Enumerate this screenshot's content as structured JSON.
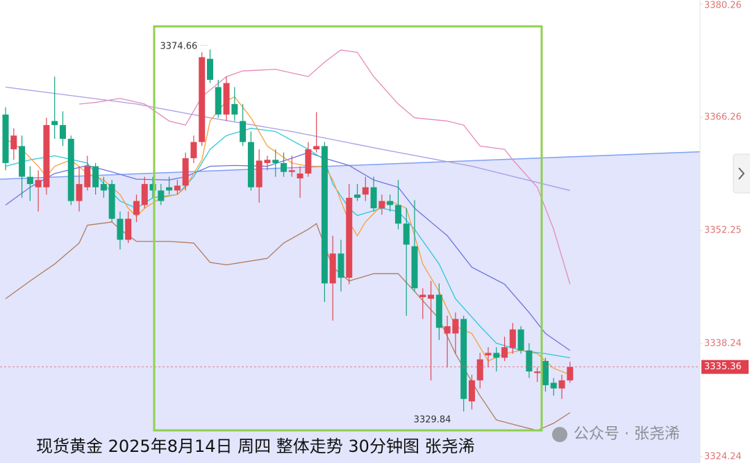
{
  "chart_data": {
    "type": "candlestick",
    "title": "现货黄金 2025年8月14日 周四 整体走势 30分钟图 张尧浠",
    "watermark": "公众号 · 张尧浠",
    "up_color": "#e04654",
    "down_color": "#14a37f",
    "categories": [
      null,
      null,
      null,
      null,
      null,
      null,
      null,
      null,
      null,
      null,
      null,
      null,
      null,
      null,
      null,
      null,
      null,
      null,
      null,
      null,
      null,
      null,
      null,
      null,
      null,
      null,
      null,
      null,
      null,
      null,
      null,
      null,
      null,
      null,
      null,
      null,
      null,
      null,
      null,
      null,
      null,
      null,
      null,
      null,
      null,
      null,
      null,
      null,
      null,
      null,
      null,
      null,
      null,
      null,
      null,
      null,
      null,
      null,
      null,
      null,
      null,
      null,
      null,
      null,
      null,
      null,
      null,
      null,
      null,
      null
    ],
    "open": [
      3366.6,
      3362.3,
      3362.7,
      3358.9,
      3357.6,
      3357.6,
      3365.8,
      3365.3,
      3363.6,
      3355.9,
      3357.6,
      3360.2,
      3358.0,
      3358.0,
      3353.7,
      3351.1,
      3354.2,
      3355.4,
      3358.0,
      3357.2,
      3357.6,
      3357.2,
      3357.8,
      3361.2,
      3363.2,
      3373.5,
      3370.0,
      3366.6,
      3367.9,
      3365.8,
      3363.2,
      3357.6,
      3360.6,
      3361.0,
      3360.6,
      3359.5,
      3358.7,
      3359.3,
      3362.3,
      3362.7,
      3345.7,
      3349.4,
      3346.4,
      3356.7,
      3356.7,
      3357.6,
      3355.0,
      3355.9,
      3355.4,
      3353.1,
      3350.3,
      3344.0,
      3343.8,
      3344.3,
      3339.5,
      3339.5,
      3341.3,
      3331.1,
      3333.7,
      3336.8,
      3337.1,
      3336.5,
      3337.7,
      3340.0,
      3337.4,
      3334.6,
      3336.1,
      3333.4,
      3332.7,
      3333.7
    ],
    "high": [
      3367.5,
      3364.9,
      3364.0,
      3360.2,
      3359.7,
      3366.2,
      3371.3,
      3367.0,
      3364.0,
      3360.2,
      3361.5,
      3360.6,
      3358.9,
      3358.5,
      3354.6,
      3354.6,
      3356.7,
      3358.9,
      3358.9,
      3358.0,
      3358.9,
      3358.5,
      3361.9,
      3364.0,
      3374.3,
      3374.66,
      3370.9,
      3371.3,
      3370.0,
      3367.9,
      3364.5,
      3362.3,
      3361.5,
      3362.3,
      3361.9,
      3361.5,
      3360.2,
      3363.2,
      3366.9,
      3363.2,
      3351.6,
      3351.1,
      3358.0,
      3358.0,
      3358.9,
      3358.9,
      3356.7,
      3356.7,
      3358.5,
      3355.0,
      3356.0,
      3345.1,
      3346.0,
      3345.7,
      3341.7,
      3342.1,
      3341.7,
      3334.4,
      3337.1,
      3337.8,
      3337.8,
      3339.1,
      3340.8,
      3340.4,
      3338.3,
      3335.3,
      3336.5,
      3334.0,
      3334.4,
      3336.0
    ],
    "low": [
      3359.7,
      3361.0,
      3356.3,
      3355.9,
      3354.6,
      3356.7,
      3363.6,
      3362.7,
      3355.4,
      3354.6,
      3357.2,
      3356.7,
      3356.3,
      3353.3,
      3349.9,
      3350.7,
      3353.3,
      3355.0,
      3356.3,
      3355.4,
      3356.7,
      3356.7,
      3357.2,
      3360.6,
      3362.7,
      3370.5,
      3366.2,
      3365.8,
      3365.8,
      3362.7,
      3357.2,
      3355.7,
      3359.7,
      3358.9,
      3358.9,
      3358.9,
      3356.3,
      3358.9,
      3361.9,
      3343.4,
      3341.1,
      3344.7,
      3345.6,
      3355.9,
      3355.9,
      3354.6,
      3354.2,
      3354.6,
      3352.4,
      3341.7,
      3344.7,
      3341.3,
      3333.7,
      3338.7,
      3335.3,
      3337.0,
      3329.84,
      3330.1,
      3332.7,
      3335.3,
      3334.8,
      3336.1,
      3337.0,
      3337.0,
      3334.0,
      3333.5,
      3332.3,
      3331.8,
      3331.4,
      3333.4
    ],
    "close": [
      3360.6,
      3364.0,
      3358.9,
      3358.0,
      3358.5,
      3365.3,
      3365.3,
      3363.6,
      3355.9,
      3358.0,
      3360.2,
      3357.6,
      3357.2,
      3353.7,
      3351.1,
      3353.7,
      3355.9,
      3358.0,
      3357.2,
      3355.9,
      3357.2,
      3357.8,
      3361.2,
      3363.2,
      3373.7,
      3370.9,
      3366.6,
      3370.5,
      3366.6,
      3363.2,
      3357.6,
      3360.9,
      3361.0,
      3360.6,
      3359.5,
      3359.7,
      3359.3,
      3362.3,
      3362.7,
      3345.7,
      3349.4,
      3346.4,
      3356.3,
      3356.3,
      3357.6,
      3355.0,
      3355.9,
      3355.4,
      3353.1,
      3350.5,
      3345.1,
      3344.3,
      3344.3,
      3340.2,
      3340.4,
      3341.3,
      3331.4,
      3333.7,
      3336.3,
      3337.1,
      3336.5,
      3337.8,
      3340.0,
      3337.4,
      3334.8,
      3334.8,
      3333.1,
      3332.7,
      3333.7,
      3335.36
    ],
    "lines": [
      {
        "color": "#a99be6",
        "x": [
          0,
          16,
          25,
          35,
          46,
          57,
          69
        ],
        "values": [
          3370.0,
          3367.9,
          3366.2,
          3364.5,
          3362.3,
          3360.2,
          3357.2
        ]
      },
      {
        "color": "#e58ab8",
        "x": [
          9,
          11,
          14,
          17,
          20,
          22,
          24,
          27,
          29,
          33,
          37,
          39,
          41,
          43,
          45,
          48,
          50,
          54,
          56,
          58,
          61,
          62,
          65,
          67,
          69
        ],
        "values": [
          3367.9,
          3368.1,
          3368.6,
          3367.9,
          3365.8,
          3365.3,
          3368.8,
          3371.3,
          3372.0,
          3372.2,
          3371.3,
          3373.1,
          3374.6,
          3374.3,
          3371.3,
          3367.9,
          3366.2,
          3365.8,
          3365.3,
          3362.7,
          3362.3,
          3361.0,
          3357.6,
          3352.4,
          3345.6
        ]
      },
      {
        "color": "#b27a5a",
        "x": [
          0,
          3,
          6,
          9,
          10,
          13,
          14,
          16,
          20,
          23,
          25,
          27,
          32,
          34,
          37,
          38,
          40,
          42,
          45,
          48,
          50,
          53,
          55,
          58,
          60,
          63,
          65,
          67,
          69
        ],
        "values": [
          3343.8,
          3346.0,
          3348.1,
          3350.7,
          3352.9,
          3353.3,
          3352.4,
          3350.9,
          3350.9,
          3350.7,
          3348.3,
          3348.0,
          3348.8,
          3350.7,
          3352.4,
          3353.1,
          3347.7,
          3346.0,
          3346.9,
          3346.9,
          3344.7,
          3341.3,
          3337.0,
          3331.8,
          3328.8,
          3328.0,
          3327.5,
          3328.4,
          3329.7
        ]
      },
      {
        "color": "#6c74e0",
        "x": [
          0,
          3,
          6,
          10,
          13,
          16,
          20,
          22,
          25,
          28,
          32,
          35,
          37,
          39,
          42,
          45,
          48,
          50,
          54,
          57,
          61,
          64,
          66,
          69
        ],
        "values": [
          3355.4,
          3357.6,
          3359.3,
          3360.3,
          3359.5,
          3358.6,
          3358.5,
          3358.9,
          3360.2,
          3360.3,
          3360.2,
          3361.2,
          3361.9,
          3361.2,
          3360.3,
          3358.5,
          3357.6,
          3355.0,
          3351.6,
          3347.7,
          3345.6,
          3342.1,
          3339.5,
          3337.4
        ]
      },
      {
        "color": "#2ec6d6",
        "x": [
          0,
          3,
          6,
          10,
          12,
          14,
          16,
          18,
          21,
          23,
          25,
          27,
          30,
          33,
          37,
          39,
          40,
          42,
          43,
          46,
          48,
          50,
          53,
          55,
          58,
          60,
          63,
          66,
          69
        ],
        "values": [
          3360.2,
          3361.0,
          3361.5,
          3360.6,
          3358.0,
          3355.9,
          3355.0,
          3356.3,
          3356.7,
          3358.9,
          3362.3,
          3364.0,
          3364.9,
          3364.5,
          3362.3,
          3361.0,
          3358.0,
          3355.0,
          3354.1,
          3355.0,
          3354.6,
          3352.4,
          3348.1,
          3343.8,
          3340.4,
          3338.3,
          3337.4,
          3337.0,
          3336.5
        ]
      },
      {
        "color": "#f5a13c",
        "x": [
          0,
          2,
          4,
          5,
          6,
          8,
          10,
          12,
          14,
          15,
          16,
          17,
          19,
          21,
          22,
          24,
          25,
          27,
          28,
          30,
          32,
          35,
          37,
          39,
          40,
          41,
          42,
          43,
          44,
          46,
          47,
          49,
          50,
          51,
          53,
          55,
          57,
          58,
          59,
          61,
          63,
          65,
          67,
          69
        ],
        "values": [
          3363.6,
          3362.3,
          3360.2,
          3358.9,
          3360.2,
          3361.0,
          3359.3,
          3358.5,
          3356.7,
          3355.0,
          3354.0,
          3355.0,
          3356.3,
          3356.7,
          3357.6,
          3361.0,
          3365.8,
          3368.3,
          3368.8,
          3366.2,
          3362.7,
          3360.6,
          3360.2,
          3360.2,
          3358.5,
          3355.9,
          3353.3,
          3351.6,
          3353.3,
          3355.4,
          3355.9,
          3355.0,
          3351.6,
          3348.1,
          3344.7,
          3340.4,
          3339.5,
          3337.8,
          3336.1,
          3337.0,
          3337.4,
          3337.0,
          3335.2,
          3334.4
        ]
      }
    ],
    "trend_line": {
      "color": "#7ea0f5",
      "fill": "#e2e5fb",
      "x": [
        -0.68,
        84.89
      ],
      "values": [
        3358.6,
        3362.0
      ]
    },
    "xlim": [
      -0.68,
      84.89
    ],
    "ylim": [
      3323.47,
      3380.78
    ],
    "yticks": [
      3324.24,
      3338.24,
      3352.25,
      3366.26,
      3380.26
    ]
  }
}
